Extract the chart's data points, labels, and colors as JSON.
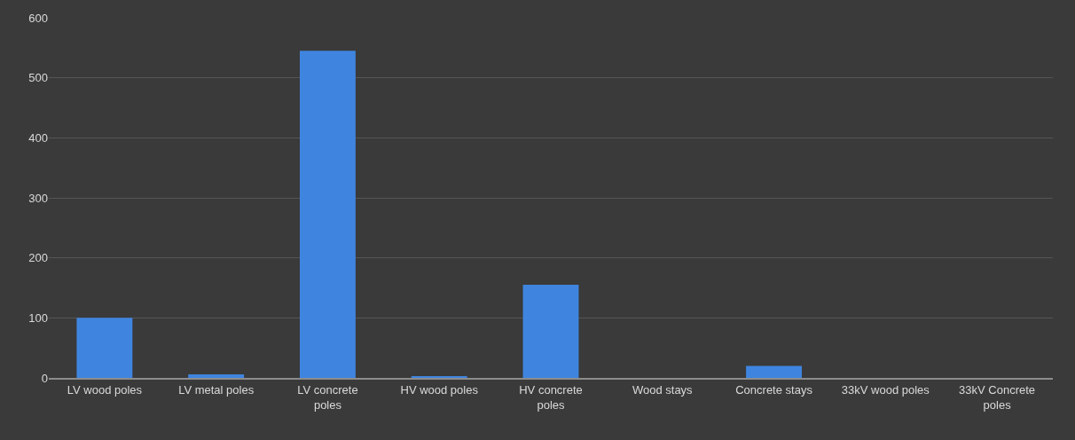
{
  "chart_data": {
    "type": "bar",
    "categories": [
      "LV wood poles",
      "LV metal poles",
      "LV concrete poles",
      "HV wood poles",
      "HV concrete poles",
      "Wood stays",
      "Concrete stays",
      "33kV wood poles",
      "33kV Concrete poles"
    ],
    "values": [
      100,
      6,
      545,
      2,
      155,
      0,
      20,
      0,
      0
    ],
    "color": "#3f85e0",
    "ylim": [
      0,
      600
    ],
    "yticks": [
      0,
      100,
      200,
      300,
      400,
      500,
      600
    ],
    "grid": "y",
    "legend": false
  }
}
